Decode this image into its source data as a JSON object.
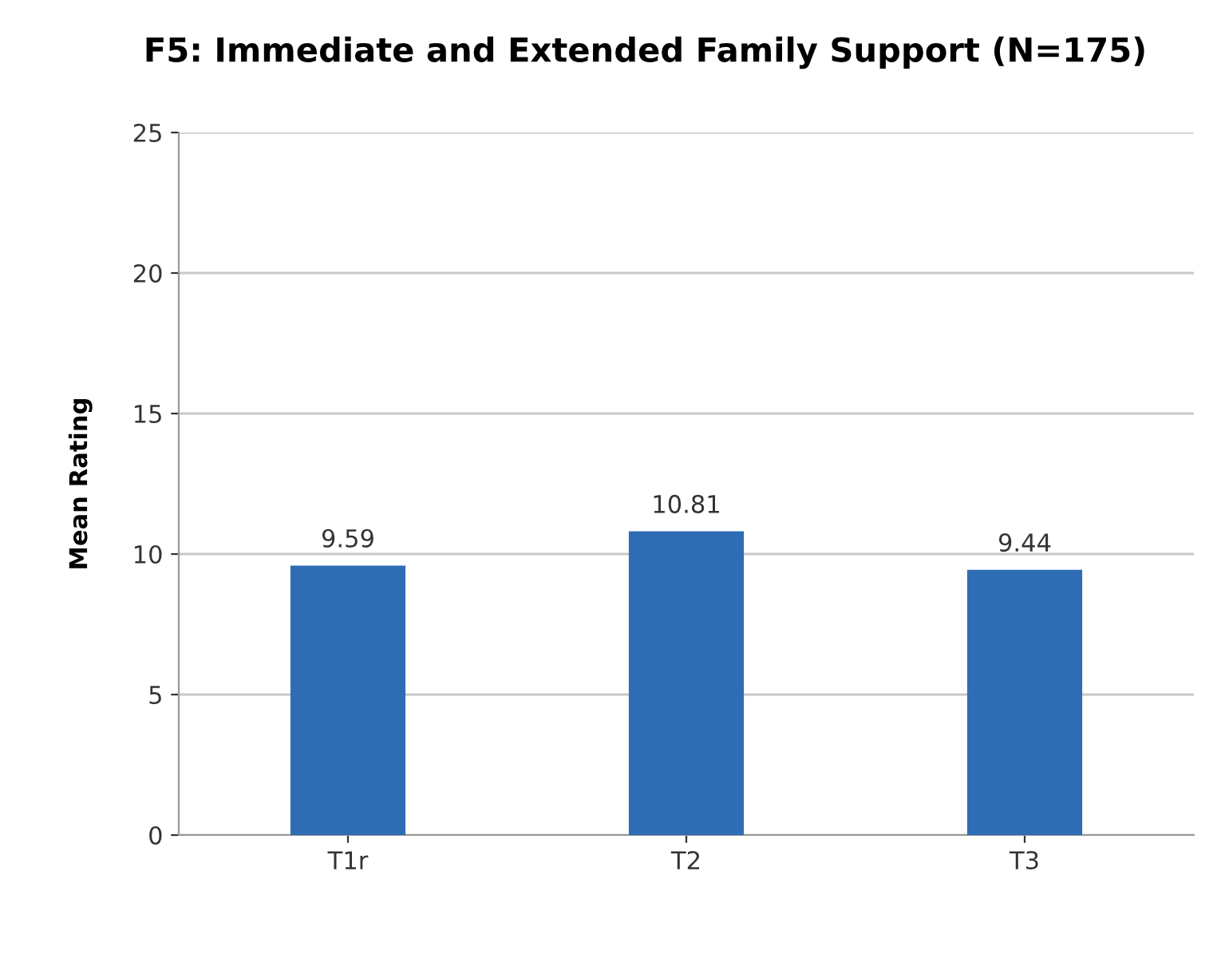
{
  "chart_data": {
    "type": "bar",
    "title": "F5: Immediate and Extended Family Support (N=175)",
    "ylabel": "Mean Rating",
    "categories": [
      "T1r",
      "T2",
      "T3"
    ],
    "values": [
      9.59,
      10.81,
      9.44
    ],
    "color": "#2e6db4",
    "ylim": [
      0,
      25
    ],
    "yticks": [
      0,
      5,
      10,
      15,
      20,
      25
    ],
    "grid": "y",
    "data_labels": true
  }
}
